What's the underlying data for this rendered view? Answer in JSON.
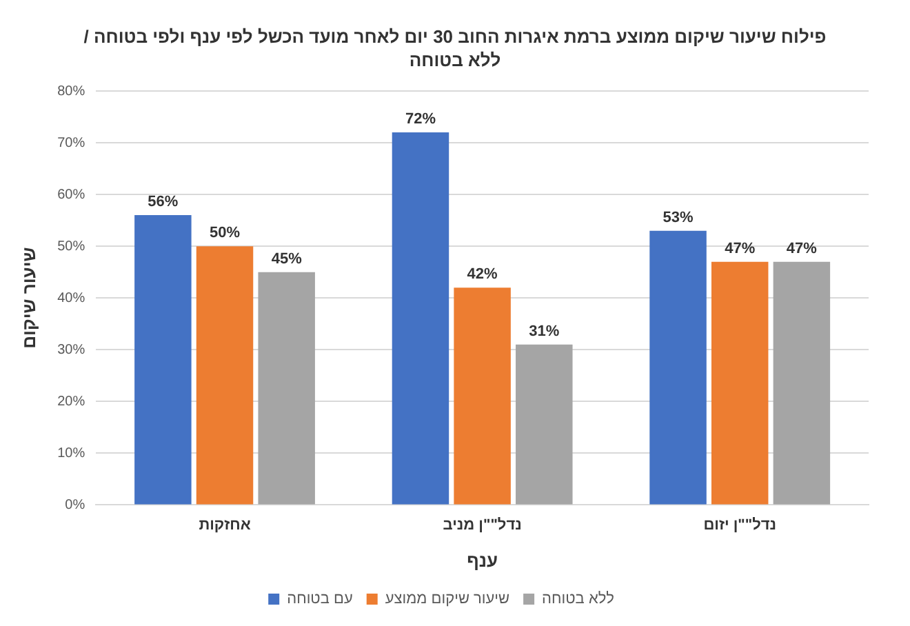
{
  "chart_data": {
    "type": "bar",
    "title": "פילוח שיעור שיקום ממוצע ברמת איגרות החוב 30 יום לאחר מועד הכשל לפי ענף ולפי בטוחה / ללא בטוחה",
    "xlabel": "ענף",
    "ylabel": "שיעור שיקום",
    "categories": [
      "אחזקות",
      "נדל\"\"ן מניב",
      "נדל\"\"ן יזום"
    ],
    "series": [
      {
        "name": "עם בטוחה",
        "color": "#4472c4",
        "values": [
          56,
          72,
          53
        ],
        "value_labels": [
          "56%",
          "72%",
          "53%"
        ]
      },
      {
        "name": "שיעור שיקום ממוצע",
        "color": "#ed7d31",
        "values": [
          50,
          42,
          47
        ],
        "value_labels": [
          "50%",
          "42%",
          "47%"
        ]
      },
      {
        "name": "ללא בטוחה",
        "color": "#a5a5a5",
        "values": [
          45,
          31,
          47
        ],
        "value_labels": [
          "45%",
          "31%",
          "47%"
        ]
      }
    ],
    "ylim": [
      0,
      80
    ],
    "yticks": [
      {
        "value": 0,
        "label": "0%"
      },
      {
        "value": 10,
        "label": "10%"
      },
      {
        "value": 20,
        "label": "20%"
      },
      {
        "value": 30,
        "label": "30%"
      },
      {
        "value": 40,
        "label": "40%"
      },
      {
        "value": 50,
        "label": "50%"
      },
      {
        "value": 60,
        "label": "60%"
      },
      {
        "value": 70,
        "label": "70%"
      },
      {
        "value": 80,
        "label": "80%"
      }
    ],
    "grid": "y",
    "legend": "bottom"
  }
}
